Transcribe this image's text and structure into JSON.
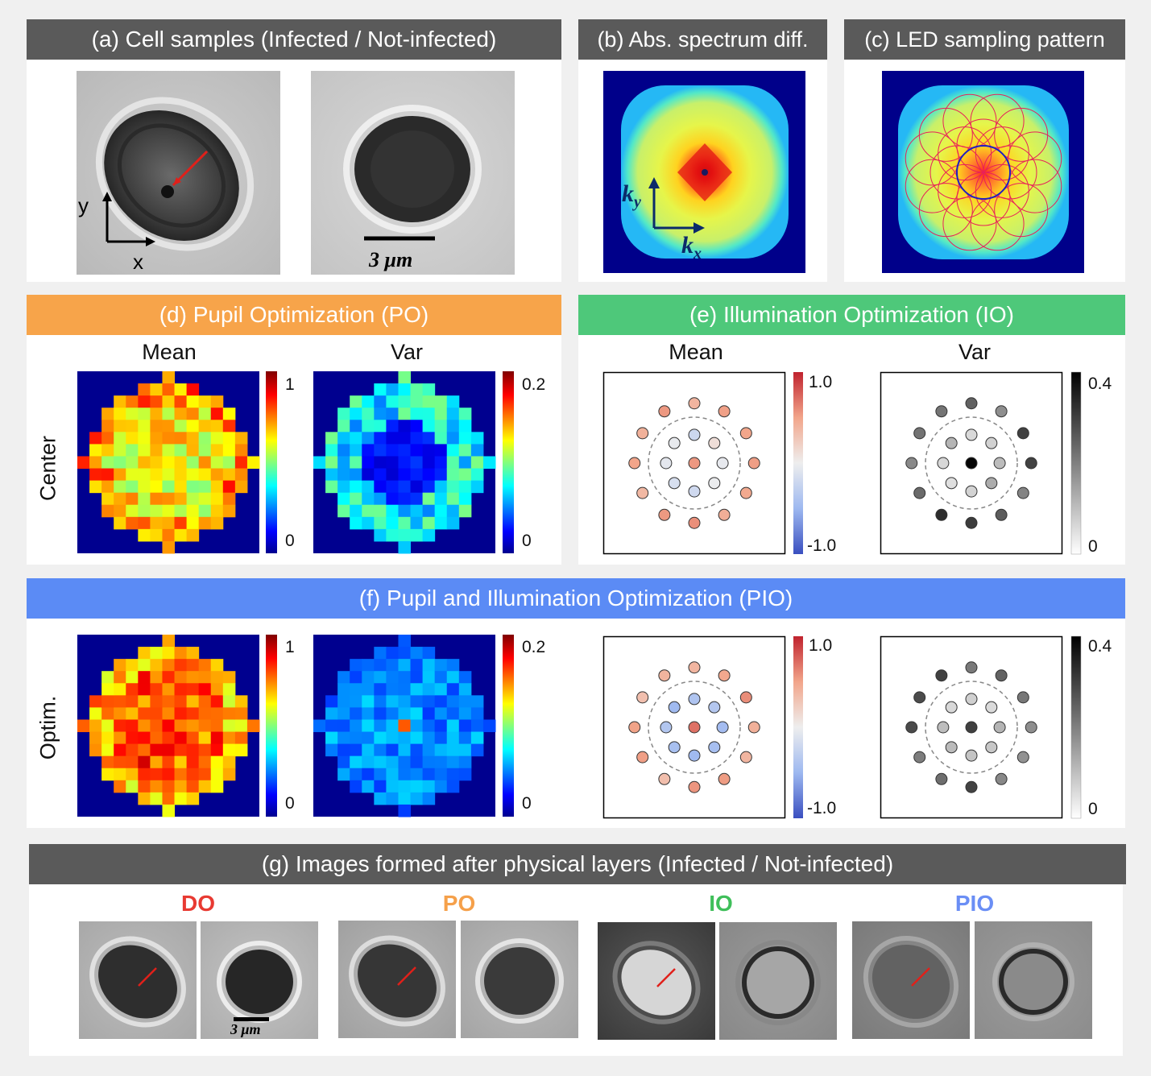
{
  "headers": {
    "a": "(a) Cell samples (Infected / Not-infected)",
    "b": "(b) Abs. spectrum diff.",
    "c": "(c) LED sampling pattern",
    "d": "(d) Pupil Optimization (PO)",
    "e": "(e) Illumination Optimization (IO)",
    "f": "(f) Pupil and Illumination Optimization (PIO)",
    "g": "(g) Images formed after physical layers (Infected / Not-infected)"
  },
  "colors": {
    "gray_header": "#5a5a5a",
    "po_header": "#f7a44a",
    "io_header": "#4ec87a",
    "pio_header": "#5b8bf5",
    "do_title": "#e83a32",
    "po_title": "#f5a04a",
    "io_title": "#3fbf5a",
    "pio_title": "#6a8ef5"
  },
  "panel_a": {
    "axis_y": "y",
    "axis_x": "x",
    "scale": "3 μm"
  },
  "panel_b": {
    "axis_y": "k",
    "axis_y_sub": "y",
    "axis_x": "k",
    "axis_x_sub": "x"
  },
  "col_labels": {
    "mean": "Mean",
    "var": "Var"
  },
  "row_labels": {
    "center": "Center",
    "optim": "Optim."
  },
  "colorbars": {
    "pupil_mean": {
      "max": "1",
      "min": "0"
    },
    "pupil_var": {
      "max": "0.2",
      "min": "0"
    },
    "illum_mean": {
      "max": "1.0",
      "min": "-1.0"
    },
    "illum_var": {
      "max": "0.4",
      "min": "0"
    }
  },
  "panel_g": {
    "titles": [
      "DO",
      "PO",
      "IO",
      "PIO"
    ],
    "scale": "3 μm"
  }
}
